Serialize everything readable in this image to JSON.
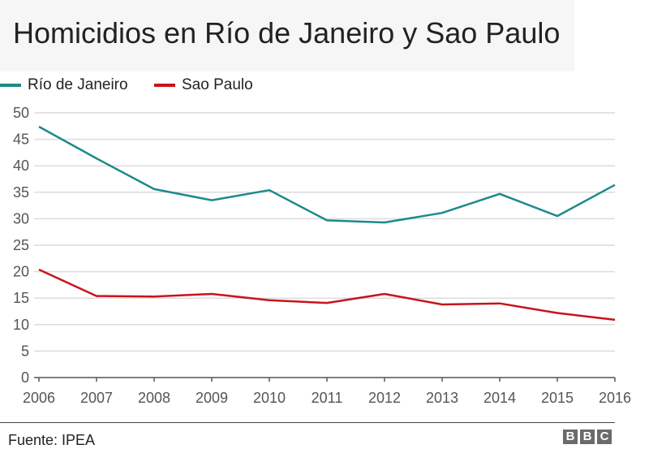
{
  "title": "Homicidios en Río de Janeiro y Sao Paulo",
  "source": "Fuente: IPEA",
  "logo": [
    "B",
    "B",
    "C"
  ],
  "colors": {
    "rio": "#1d8a8a",
    "sao": "#c8141a",
    "grid": "#dcdcdc",
    "axis": "#555555"
  },
  "chart_data": {
    "type": "line",
    "title": "Homicidios en Río de Janeiro y Sao Paulo",
    "x": [
      "2006",
      "2007",
      "2008",
      "2009",
      "2010",
      "2011",
      "2012",
      "2013",
      "2014",
      "2015",
      "2016"
    ],
    "xlabel": "",
    "ylabel": "",
    "ylim": [
      0,
      50
    ],
    "yticks": [
      0,
      5,
      10,
      15,
      20,
      25,
      30,
      35,
      40,
      45,
      50
    ],
    "grid": true,
    "legend": "top-left",
    "series": [
      {
        "name": "Río de Janeiro",
        "color": "#1d8a8a",
        "values": [
          47.4,
          41.4,
          35.6,
          33.5,
          35.4,
          29.7,
          29.3,
          31.1,
          34.7,
          30.5,
          36.4
        ]
      },
      {
        "name": "Sao Paulo",
        "color": "#c8141a",
        "values": [
          20.4,
          15.4,
          15.3,
          15.8,
          14.6,
          14.1,
          15.8,
          13.8,
          14.0,
          12.2,
          10.9
        ]
      }
    ]
  }
}
